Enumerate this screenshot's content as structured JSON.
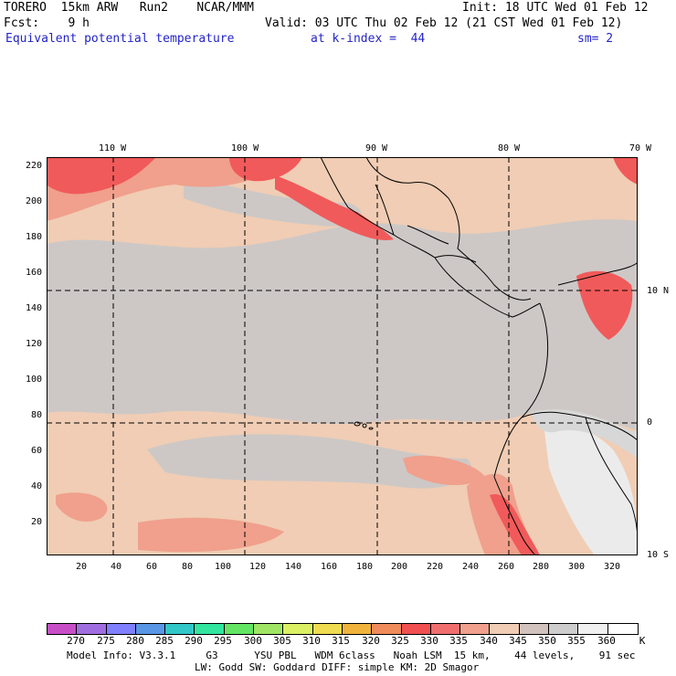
{
  "header": {
    "line1_left": "TORERO  15km ARW   Run2    NCAR/MMM",
    "line1_right": "Init: 18 UTC Wed 01 Feb 12",
    "line2_left": "Fcst:    9 h",
    "line2_right": "Valid: 03 UTC Thu 02 Feb 12 (21 CST Wed 01 Feb 12)",
    "field": "Equivalent potential temperature",
    "kindex": "at k-index =  44",
    "smooth": "sm= 2"
  },
  "map": {
    "lon_labels": [
      "110 W",
      "100 W",
      "90 W",
      "80 W",
      "70 W"
    ],
    "lat_labels": [
      "10 N",
      "0",
      "10 S"
    ],
    "y_ticks": [
      "220",
      "200",
      "180",
      "160",
      "140",
      "120",
      "100",
      "80",
      "60",
      "40",
      "20"
    ],
    "x_ticks": [
      "20",
      "40",
      "60",
      "80",
      "100",
      "120",
      "140",
      "160",
      "180",
      "200",
      "220",
      "240",
      "260",
      "280",
      "300",
      "320"
    ],
    "region": "Eastern Pacific / Central America / NW South America"
  },
  "colorbar": {
    "unit": "K",
    "labels": [
      "270",
      "275",
      "280",
      "285",
      "290",
      "295",
      "300",
      "305",
      "310",
      "315",
      "320",
      "325",
      "330",
      "335",
      "340",
      "345",
      "350",
      "355",
      "360"
    ],
    "colors": [
      "#c84ec8",
      "#a06ee0",
      "#8080ff",
      "#5a96e6",
      "#32c8c8",
      "#32e6a0",
      "#64e664",
      "#a0e664",
      "#dcf064",
      "#f0dc50",
      "#f0b43c",
      "#f08c5a",
      "#f05050",
      "#f06e6e",
      "#f0a08c",
      "#f0cdb4",
      "#d2c3be",
      "#cdcdcd",
      "#f0f0f0",
      "#ffffff"
    ]
  },
  "footer": {
    "line1": "Model Info: V3.3.1     G3      YSU PBL   WDM 6class   Noah LSM  15 km,    44 levels,    91 sec",
    "line2": "LW: Godd SW: Goddard DIFF: simple KM: 2D Smagor"
  }
}
